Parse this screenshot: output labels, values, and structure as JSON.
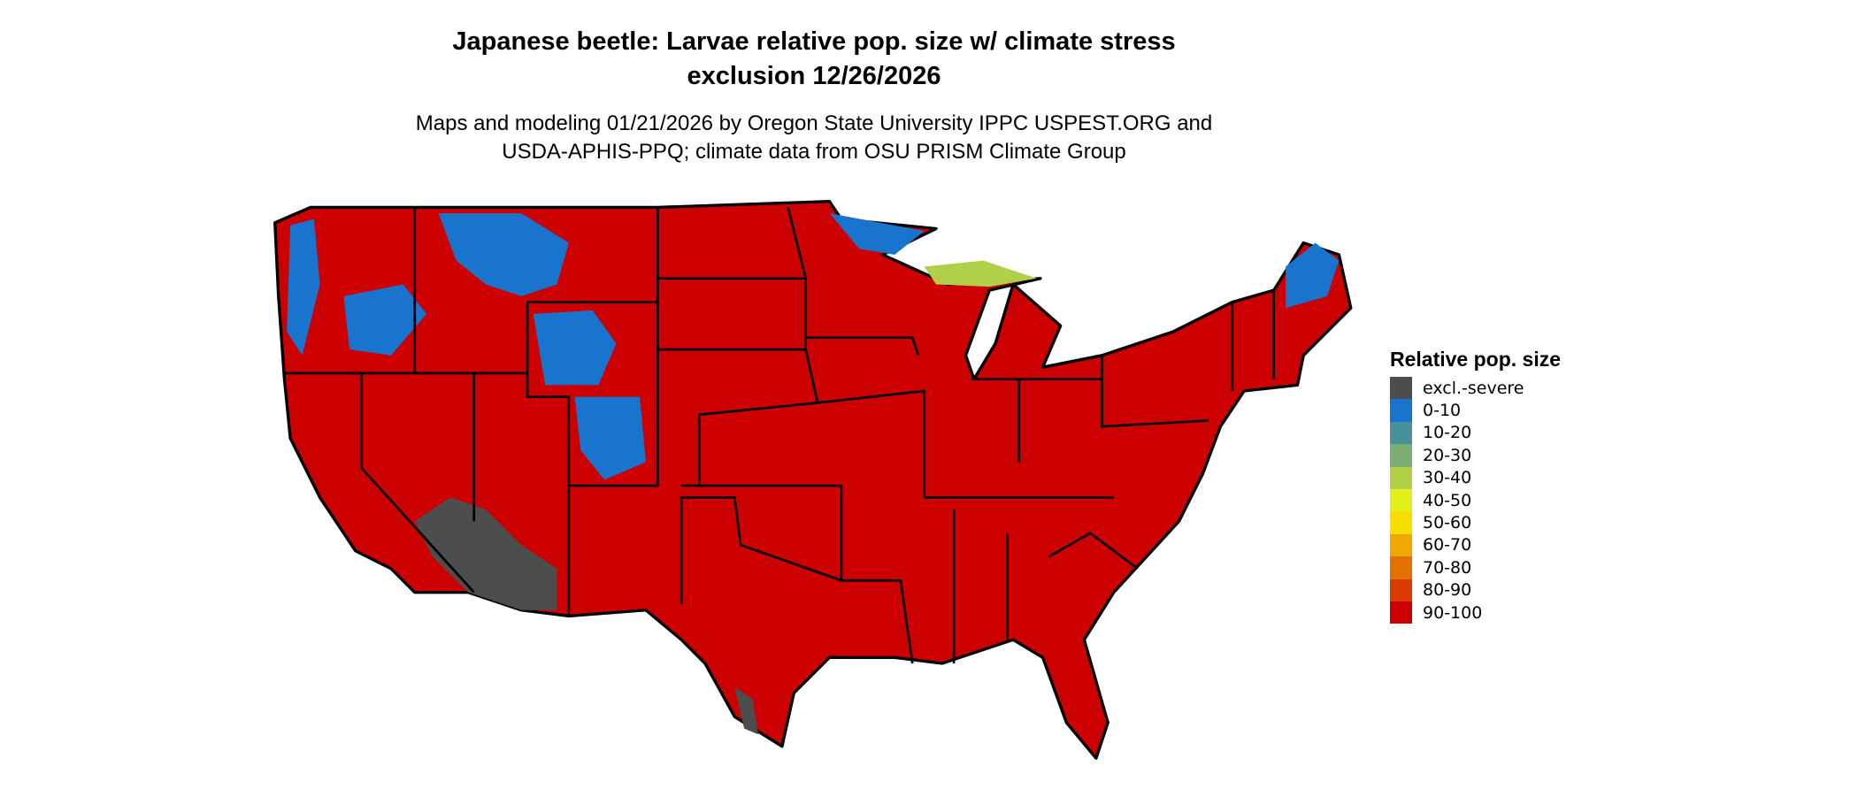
{
  "chart_data": {
    "type": "heatmap",
    "title": "Japanese beetle: Larvae relative pop. size w/ climate stress exclusion 12/26/2026",
    "title_lines": [
      "Japanese beetle: Larvae relative pop. size w/ climate stress",
      "exclusion 12/26/2026"
    ],
    "subtitle_lines": [
      "Maps and modeling 01/21/2026 by Oregon State University IPPC USPEST.ORG and",
      "USDA-APHIS-PPQ; climate data from OSU PRISM Climate Group"
    ],
    "region": "Contiguous United States",
    "legend": {
      "title": "Relative pop. size",
      "placement": "right",
      "items": [
        {
          "label": "excl.-severe",
          "color": "#4d4d4d"
        },
        {
          "label": "0-10",
          "color": "#1874cd"
        },
        {
          "label": "10-20",
          "color": "#48909a"
        },
        {
          "label": "20-30",
          "color": "#7aae74"
        },
        {
          "label": "30-40",
          "color": "#b2d047"
        },
        {
          "label": "40-50",
          "color": "#e3ef1a"
        },
        {
          "label": "50-60",
          "color": "#f8de00"
        },
        {
          "label": "60-70",
          "color": "#efa800"
        },
        {
          "label": "70-80",
          "color": "#e47000"
        },
        {
          "label": "80-90",
          "color": "#d83a00"
        },
        {
          "label": "90-100",
          "color": "#cc0000"
        }
      ]
    },
    "dominant_class": "90-100",
    "low_classes_regions": "Northern Rockies, Cascades, Upper Great Lakes, northern Maine (0-10 to 60-70)",
    "excluded_regions": "Southern Arizona / SE California desert, south Texas tip (excl.-severe)"
  }
}
